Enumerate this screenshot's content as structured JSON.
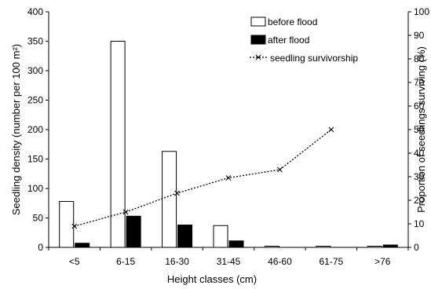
{
  "chart_data": {
    "type": "bar",
    "categories": [
      "<5",
      "6-15",
      "16-30",
      "31-45",
      "46-60",
      "61-75",
      ">76"
    ],
    "series": [
      {
        "name": "before flood",
        "type": "bar",
        "axis": "left",
        "color": "#ffffff",
        "values": [
          78,
          350,
          163,
          37,
          2,
          2,
          2
        ]
      },
      {
        "name": "after flood",
        "type": "bar",
        "axis": "left",
        "color": "#000000",
        "values": [
          7,
          53,
          38,
          11,
          0,
          0,
          4
        ]
      },
      {
        "name": "seedling survivorship",
        "type": "line",
        "axis": "right",
        "color": "#000000",
        "marker": "x",
        "values": [
          9,
          15,
          23,
          29.5,
          33,
          50,
          null
        ]
      }
    ],
    "xlabel": "Height classes (cm)",
    "ylabel": "Seedling density (number per 100 m²)",
    "y2label": "Proportion of seedlings surviving (%)",
    "ylim": [
      0,
      400
    ],
    "y2lim": [
      0,
      100
    ],
    "yticks": [
      "0",
      "50",
      "100",
      "150",
      "200",
      "250",
      "300",
      "350",
      "400"
    ],
    "y2ticks": [
      "0",
      "10",
      "20",
      "30",
      "40",
      "50",
      "60",
      "70",
      "80",
      "90",
      "100"
    ],
    "grid": false,
    "legend_position": "top-right"
  }
}
